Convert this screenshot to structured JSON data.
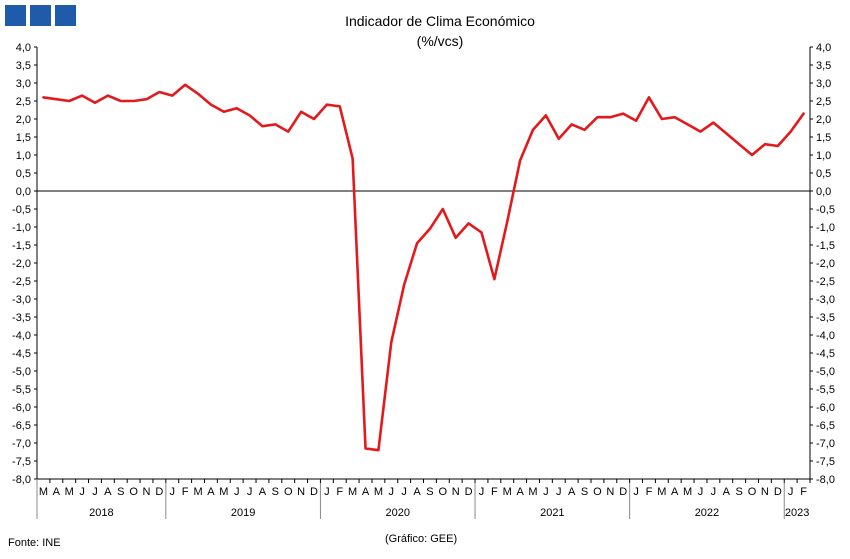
{
  "header": {
    "title": "Indicador de Clima Económico",
    "subtitle": "(%/vcs)"
  },
  "footer": {
    "source": "Fonte: INE",
    "credit": "(Gráfico: GEE)"
  },
  "colors": {
    "series": "#e31a1c",
    "logo": "#1f5ba8",
    "axis": "#000000",
    "separator": "#888888"
  },
  "chart_data": {
    "type": "line",
    "title": "Indicador de Clima Económico",
    "subtitle": "(%/vcs)",
    "xlabel": "",
    "ylabel": "",
    "ylim": [
      -8,
      4
    ],
    "ytick_step": 0.5,
    "y_ticks": [
      "4,0",
      "3,5",
      "3,0",
      "2,5",
      "2,0",
      "1,5",
      "1,0",
      "0,5",
      "0,0",
      "-0,5",
      "-1,0",
      "-1,5",
      "-2,0",
      "-2,5",
      "-3,0",
      "-3,5",
      "-4,0",
      "-4,5",
      "-5,0",
      "-5,5",
      "-6,0",
      "-6,5",
      "-7,0",
      "-7,5",
      "-8,0"
    ],
    "grid": false,
    "legend": "none",
    "month_labels": [
      "M",
      "A",
      "M",
      "J",
      "J",
      "A",
      "S",
      "O",
      "N",
      "D",
      "J",
      "F",
      "M",
      "A",
      "M",
      "J",
      "J",
      "A",
      "S",
      "O",
      "N",
      "D",
      "J",
      "F",
      "M",
      "A",
      "M",
      "J",
      "J",
      "A",
      "S",
      "O",
      "N",
      "D",
      "J",
      "F",
      "M",
      "A",
      "M",
      "J",
      "J",
      "A",
      "S",
      "O",
      "N",
      "D",
      "J",
      "F",
      "M",
      "A",
      "M",
      "J",
      "J",
      "A",
      "S",
      "O",
      "N",
      "D",
      "J",
      "F"
    ],
    "years": [
      {
        "label": "2018",
        "start": 0,
        "count": 10
      },
      {
        "label": "2019",
        "start": 10,
        "count": 12
      },
      {
        "label": "2020",
        "start": 22,
        "count": 12
      },
      {
        "label": "2021",
        "start": 34,
        "count": 12
      },
      {
        "label": "2022",
        "start": 46,
        "count": 12
      },
      {
        "label": "2023",
        "start": 58,
        "count": 2
      }
    ],
    "series": [
      {
        "values": [
          2.6,
          2.55,
          2.5,
          2.65,
          2.45,
          2.65,
          2.5,
          2.5,
          2.55,
          2.75,
          2.65,
          2.95,
          2.7,
          2.4,
          2.2,
          2.3,
          2.1,
          1.8,
          1.85,
          1.65,
          2.2,
          2.0,
          2.4,
          2.35,
          0.9,
          -7.15,
          -7.2,
          -4.2,
          -2.6,
          -1.45,
          -1.05,
          -0.5,
          -1.3,
          -0.9,
          -1.15,
          -2.45,
          -0.85,
          0.85,
          1.7,
          2.1,
          1.45,
          1.85,
          1.7,
          2.05,
          2.05,
          2.15,
          1.95,
          2.6,
          2.0,
          2.05,
          1.85,
          1.65,
          1.9,
          1.6,
          1.3,
          1.0,
          1.3,
          1.25,
          1.65,
          2.15
        ]
      }
    ]
  }
}
